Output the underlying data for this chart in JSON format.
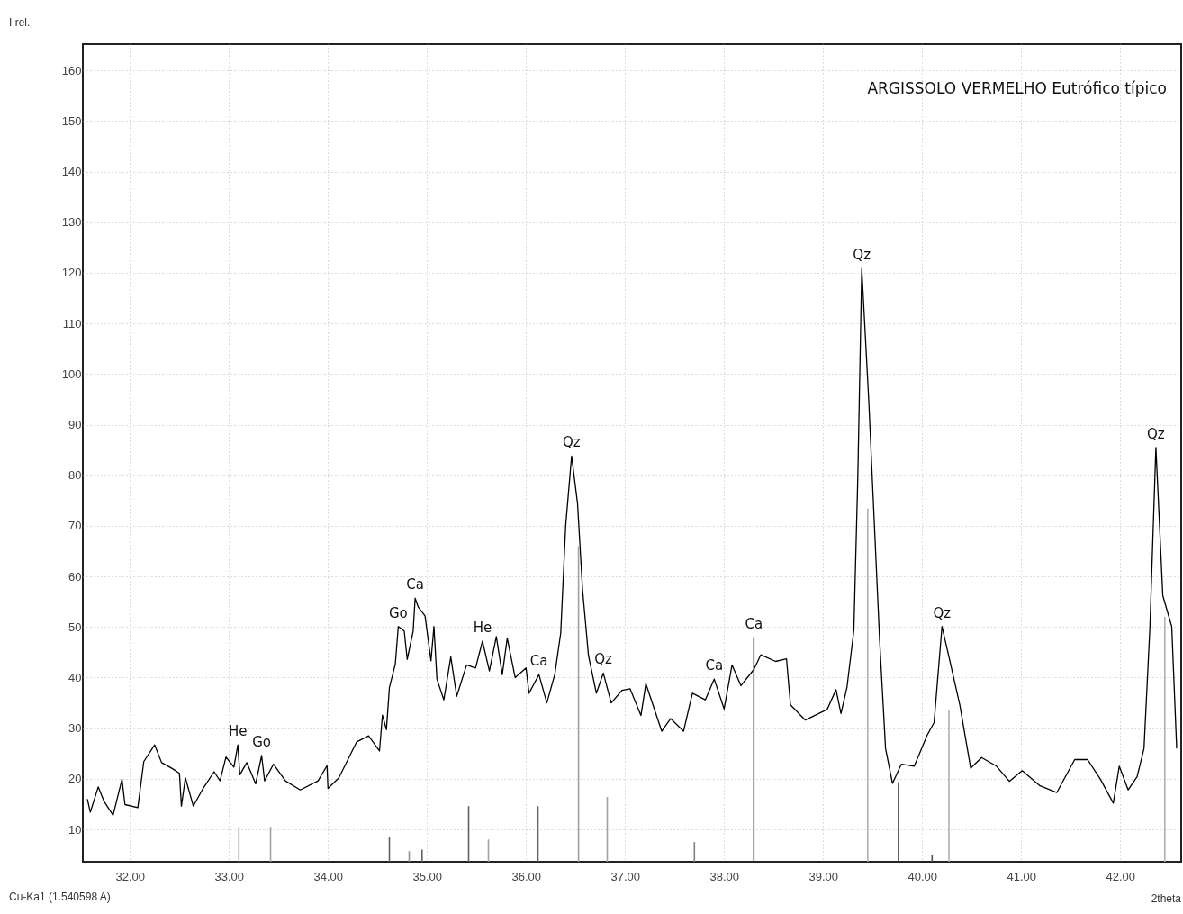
{
  "chart_data": {
    "type": "line",
    "title": "ARGISSOLO VERMELHO Eutrófico típico",
    "xlabel": "2theta",
    "ylabel": "I rel.",
    "xlim": [
      31.57,
      42.57
    ],
    "ylim": [
      3.6,
      165.2
    ],
    "xticks": [
      {
        "value": 32,
        "label": "32.00"
      },
      {
        "value": 33,
        "label": "33.00"
      },
      {
        "value": 34,
        "label": "34.00"
      },
      {
        "value": 35,
        "label": "35.00"
      },
      {
        "value": 36,
        "label": "36.00"
      },
      {
        "value": 37,
        "label": "37.00"
      },
      {
        "value": 38,
        "label": "38.00"
      },
      {
        "value": 39,
        "label": "39.00"
      },
      {
        "value": 40,
        "label": "40.00"
      },
      {
        "value": 41,
        "label": "41.00"
      },
      {
        "value": 42,
        "label": "42.00"
      }
    ],
    "yticks": [
      10,
      20,
      30,
      40,
      50,
      60,
      70,
      80,
      90,
      100,
      110,
      120,
      130,
      140,
      150,
      160
    ],
    "grid": true,
    "marker": "none",
    "line_style": "solid",
    "series": [
      {
        "color": "#000000",
        "x": [
          31.57,
          31.6,
          31.68,
          31.74,
          31.83,
          31.92,
          31.95,
          32.08,
          32.14,
          32.25,
          32.32,
          32.43,
          32.5,
          32.52,
          32.56,
          32.64,
          32.73,
          32.85,
          32.91,
          32.97,
          33.05,
          33.09,
          33.11,
          33.18,
          33.27,
          33.33,
          33.36,
          33.45,
          33.57,
          33.72,
          33.9,
          33.99,
          34.0,
          34.11,
          34.29,
          34.41,
          34.52,
          34.55,
          34.59,
          34.62,
          34.68,
          34.71,
          34.77,
          34.8,
          34.86,
          34.88,
          34.91,
          34.98,
          35.04,
          35.07,
          35.1,
          35.17,
          35.24,
          35.3,
          35.4,
          35.49,
          35.56,
          35.63,
          35.7,
          35.76,
          35.81,
          35.89,
          36.0,
          36.03,
          36.13,
          36.21,
          36.29,
          36.35,
          36.4,
          36.46,
          36.52,
          36.57,
          36.63,
          36.71,
          36.78,
          36.86,
          36.97,
          37.05,
          37.16,
          37.21,
          37.37,
          37.46,
          37.59,
          37.68,
          37.81,
          37.9,
          38.0,
          38.08,
          38.17,
          38.3,
          38.37,
          38.52,
          38.63,
          38.67,
          38.82,
          39.04,
          39.13,
          39.18,
          39.24,
          39.31,
          39.35,
          39.39,
          39.46,
          39.57,
          39.63,
          39.7,
          39.79,
          39.92,
          40.05,
          40.12,
          40.2,
          40.27,
          40.38,
          40.49,
          40.6,
          40.75,
          40.88,
          41.01,
          41.19,
          41.36,
          41.54,
          41.67,
          41.8,
          41.93,
          41.99,
          42.08,
          42.17,
          42.24,
          42.3,
          42.36,
          42.43,
          42.52,
          42.57
        ],
        "values": [
          16.0,
          13.4,
          18.4,
          15.5,
          12.8,
          19.9,
          14.9,
          14.3,
          23.4,
          26.7,
          23.2,
          22.0,
          21.1,
          14.6,
          20.2,
          14.6,
          17.8,
          21.4,
          19.6,
          24.3,
          22.3,
          26.7,
          20.8,
          23.2,
          19.0,
          24.6,
          19.6,
          22.9,
          19.6,
          17.8,
          19.6,
          22.6,
          18.1,
          20.2,
          27.3,
          28.5,
          25.5,
          32.6,
          29.7,
          38.0,
          42.7,
          50.1,
          49.2,
          43.6,
          49.2,
          55.7,
          54.0,
          52.2,
          43.3,
          50.1,
          39.7,
          35.6,
          44.1,
          36.3,
          42.5,
          41.9,
          47.2,
          41.3,
          48.1,
          40.6,
          47.8,
          40.0,
          41.9,
          36.9,
          40.6,
          35.0,
          40.6,
          48.8,
          70.0,
          83.8,
          74.4,
          57.5,
          44.4,
          36.9,
          40.9,
          35.0,
          37.5,
          37.8,
          32.5,
          38.8,
          29.4,
          31.9,
          29.4,
          36.9,
          35.6,
          39.7,
          33.8,
          42.5,
          38.4,
          41.6,
          44.5,
          43.2,
          43.7,
          34.6,
          31.6,
          33.7,
          37.6,
          32.9,
          38.0,
          49.3,
          79.5,
          120.9,
          95.0,
          47.5,
          26.0,
          19.1,
          22.9,
          22.5,
          28.6,
          31.1,
          50.1,
          44.1,
          34.6,
          22.1,
          24.2,
          22.5,
          19.5,
          21.6,
          18.6,
          17.3,
          23.8,
          23.8,
          19.9,
          15.2,
          22.5,
          17.8,
          20.4,
          26.0,
          50.1,
          85.5,
          56.2,
          50.1,
          26.0
        ]
      },
      {
        "type": "bar",
        "x": [
          33.1,
          33.42,
          34.62,
          34.82,
          34.95,
          35.42,
          35.62,
          36.12,
          36.53,
          36.82,
          37.7,
          38.3,
          39.45,
          39.76,
          40.1,
          40.27,
          42.45
        ],
        "values": [
          10.5,
          10.5,
          8.4,
          5.7,
          6.0,
          14.6,
          8.0,
          14.6,
          66.0,
          16.4,
          7.5,
          48.0,
          73.4,
          19.3,
          5.0,
          33.5,
          52.0
        ],
        "colors": [
          "#a0a0a0",
          "#a0a0a0",
          "#606060",
          "#909090",
          "#606060",
          "#606060",
          "#a0a0a0",
          "#606060",
          "#a0a0a0",
          "#a0a0a0",
          "#808080",
          "#505050",
          "#b0b0b0",
          "#505050",
          "#505050",
          "#b0b0b0",
          "#b0b0b0"
        ]
      }
    ],
    "annotations": [
      {
        "text": "He",
        "x": 33.09,
        "y": 26.7
      },
      {
        "text": "Go",
        "x": 33.33,
        "y": 24.6
      },
      {
        "text": "Go",
        "x": 34.71,
        "y": 50.1
      },
      {
        "text": "Ca",
        "x": 34.88,
        "y": 55.7
      },
      {
        "text": "He",
        "x": 35.56,
        "y": 47.2
      },
      {
        "text": "Ca",
        "x": 36.13,
        "y": 40.6
      },
      {
        "text": "Qz",
        "x": 36.46,
        "y": 83.8
      },
      {
        "text": "Qz",
        "x": 36.78,
        "y": 40.9
      },
      {
        "text": "Ca",
        "x": 37.9,
        "y": 39.7
      },
      {
        "text": "Ca",
        "x": 38.3,
        "y": 48.0
      },
      {
        "text": "Qz",
        "x": 39.39,
        "y": 120.9
      },
      {
        "text": "Qz",
        "x": 40.2,
        "y": 50.1
      },
      {
        "text": "Qz",
        "x": 42.36,
        "y": 85.5
      },
      "Cu-Ka1 (1.540598 A)"
    ]
  }
}
